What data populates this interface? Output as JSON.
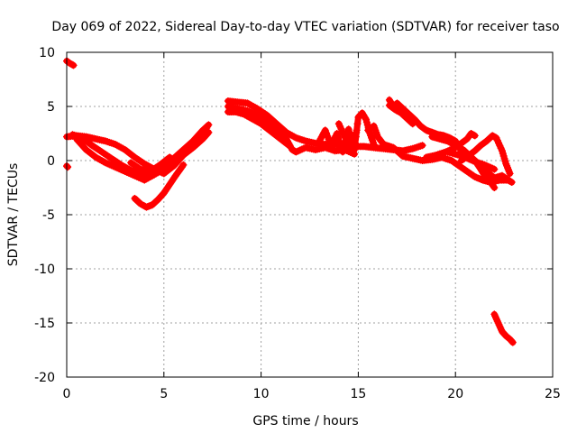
{
  "chart_data": {
    "type": "scatter",
    "title": "Day 069 of 2022, Sidereal Day-to-day VTEC variation (SDTVAR) for receiver taso",
    "xlabel": "GPS time / hours",
    "ylabel": "SDTVAR / TECUs",
    "xlim": [
      0,
      25
    ],
    "ylim": [
      -20,
      10
    ],
    "xticks": [
      0,
      5,
      10,
      15,
      20,
      25
    ],
    "yticks": [
      -20,
      -15,
      -10,
      -5,
      0,
      5,
      10
    ],
    "grid": true,
    "marker": "+",
    "series_color": "#ff0000",
    "segments": [
      [
        [
          0.0,
          9.2
        ],
        [
          0.15,
          9.0
        ],
        [
          0.35,
          8.8
        ]
      ],
      [
        [
          0.0,
          -0.5
        ],
        [
          0.05,
          -0.6
        ]
      ],
      [
        [
          0.0,
          2.2
        ],
        [
          0.5,
          2.3
        ],
        [
          1.0,
          2.2
        ],
        [
          1.5,
          2.0
        ],
        [
          2.0,
          1.8
        ],
        [
          2.5,
          1.5
        ],
        [
          3.0,
          1.0
        ],
        [
          3.5,
          0.3
        ],
        [
          4.0,
          -0.3
        ],
        [
          4.5,
          -0.8
        ],
        [
          5.0,
          -1.2
        ],
        [
          5.5,
          -0.5
        ],
        [
          6.0,
          0.5
        ],
        [
          6.5,
          1.2
        ],
        [
          7.0,
          2.0
        ],
        [
          7.3,
          2.6
        ]
      ],
      [
        [
          0.3,
          2.4
        ],
        [
          0.8,
          2.1
        ],
        [
          1.3,
          1.4
        ],
        [
          1.8,
          0.8
        ],
        [
          2.3,
          0.2
        ],
        [
          2.8,
          -0.4
        ],
        [
          3.3,
          -0.9
        ],
        [
          3.8,
          -1.3
        ],
        [
          4.3,
          -1.5
        ],
        [
          4.8,
          -1.0
        ],
        [
          5.3,
          -0.2
        ],
        [
          5.8,
          0.6
        ],
        [
          6.3,
          1.4
        ],
        [
          6.8,
          2.2
        ],
        [
          7.2,
          3.0
        ]
      ],
      [
        [
          0.5,
          2.0
        ],
        [
          1.0,
          1.0
        ],
        [
          1.5,
          0.3
        ],
        [
          2.0,
          -0.2
        ],
        [
          2.5,
          -0.6
        ],
        [
          3.0,
          -1.0
        ],
        [
          3.5,
          -1.4
        ],
        [
          4.0,
          -1.8
        ],
        [
          4.5,
          -1.3
        ],
        [
          5.0,
          -0.6
        ],
        [
          5.5,
          0.2
        ],
        [
          6.0,
          1.0
        ],
        [
          6.5,
          1.8
        ],
        [
          7.0,
          2.8
        ],
        [
          7.3,
          3.3
        ]
      ],
      [
        [
          3.5,
          -3.5
        ],
        [
          3.8,
          -4.0
        ],
        [
          4.1,
          -4.3
        ],
        [
          4.4,
          -4.1
        ],
        [
          4.7,
          -3.6
        ],
        [
          5.0,
          -3.0
        ],
        [
          5.3,
          -2.2
        ],
        [
          5.6,
          -1.4
        ],
        [
          6.0,
          -0.4
        ]
      ],
      [
        [
          3.3,
          -0.2
        ],
        [
          3.8,
          -0.8
        ],
        [
          4.3,
          -1.0
        ],
        [
          4.8,
          -0.4
        ],
        [
          5.3,
          0.3
        ]
      ],
      [
        [
          8.3,
          5.5
        ],
        [
          8.8,
          5.4
        ],
        [
          9.3,
          5.3
        ],
        [
          9.8,
          4.8
        ],
        [
          10.3,
          4.2
        ],
        [
          10.8,
          3.4
        ],
        [
          11.3,
          2.6
        ],
        [
          11.8,
          2.1
        ],
        [
          12.3,
          1.8
        ],
        [
          12.8,
          1.6
        ],
        [
          13.3,
          1.5
        ],
        [
          13.8,
          1.5
        ],
        [
          14.3,
          1.4
        ],
        [
          14.8,
          1.3
        ],
        [
          15.3,
          1.3
        ],
        [
          15.8,
          1.2
        ],
        [
          16.3,
          1.1
        ],
        [
          16.8,
          1.0
        ],
        [
          17.3,
          0.9
        ],
        [
          17.8,
          1.1
        ],
        [
          18.3,
          1.4
        ]
      ],
      [
        [
          8.3,
          5.0
        ],
        [
          8.8,
          4.8
        ],
        [
          9.3,
          4.6
        ],
        [
          9.8,
          4.2
        ],
        [
          10.3,
          3.6
        ],
        [
          10.8,
          2.8
        ],
        [
          11.3,
          2.0
        ],
        [
          11.6,
          1.0
        ],
        [
          11.8,
          0.8
        ],
        [
          12.3,
          1.2
        ],
        [
          12.8,
          1.0
        ],
        [
          13.3,
          1.2
        ],
        [
          13.8,
          0.9
        ],
        [
          14.3,
          1.0
        ],
        [
          14.8,
          0.6
        ]
      ],
      [
        [
          8.3,
          4.5
        ],
        [
          8.7,
          4.5
        ],
        [
          9.1,
          4.3
        ],
        [
          9.5,
          3.9
        ],
        [
          10.0,
          3.4
        ],
        [
          10.5,
          2.7
        ],
        [
          11.0,
          2.0
        ],
        [
          11.5,
          1.3
        ]
      ],
      [
        [
          13.0,
          1.8
        ],
        [
          13.3,
          2.8
        ],
        [
          13.6,
          1.4
        ],
        [
          13.9,
          2.5
        ],
        [
          14.2,
          0.8
        ],
        [
          14.5,
          2.9
        ],
        [
          14.8,
          1.0
        ],
        [
          15.0,
          4.0
        ],
        [
          15.2,
          4.4
        ],
        [
          15.4,
          3.8
        ],
        [
          15.6,
          2.5
        ],
        [
          15.8,
          1.5
        ]
      ],
      [
        [
          14.0,
          3.4
        ],
        [
          14.3,
          2.2
        ],
        [
          14.6,
          1.8
        ],
        [
          14.9,
          2.6
        ]
      ],
      [
        [
          15.5,
          2.8
        ],
        [
          15.8,
          3.2
        ],
        [
          16.0,
          2.2
        ],
        [
          16.3,
          1.5
        ],
        [
          16.8,
          1.2
        ],
        [
          17.3,
          0.4
        ],
        [
          17.8,
          0.2
        ],
        [
          18.3,
          0.0
        ],
        [
          18.8,
          0.1
        ],
        [
          19.3,
          0.3
        ],
        [
          19.8,
          0.0
        ],
        [
          20.2,
          -0.5
        ],
        [
          20.6,
          -1.0
        ],
        [
          21.0,
          -1.5
        ],
        [
          21.4,
          -1.8
        ],
        [
          21.8,
          -2.0
        ],
        [
          22.3,
          -1.8
        ],
        [
          22.7,
          -1.8
        ],
        [
          22.9,
          -2.0
        ]
      ],
      [
        [
          16.6,
          5.6
        ],
        [
          16.8,
          5.0
        ],
        [
          17.0,
          5.3
        ],
        [
          17.3,
          4.8
        ],
        [
          17.6,
          4.3
        ],
        [
          17.9,
          3.8
        ],
        [
          18.2,
          3.2
        ],
        [
          18.5,
          2.8
        ],
        [
          18.8,
          2.6
        ],
        [
          19.1,
          2.4
        ],
        [
          19.4,
          2.3
        ],
        [
          19.7,
          2.1
        ],
        [
          20.0,
          1.8
        ],
        [
          20.2,
          1.2
        ],
        [
          20.4,
          0.6
        ],
        [
          20.7,
          0.3
        ],
        [
          21.0,
          0.0
        ],
        [
          21.3,
          -0.5
        ],
        [
          21.6,
          -1.0
        ],
        [
          22.0,
          -1.6
        ],
        [
          22.4,
          -1.4
        ],
        [
          22.8,
          -1.9
        ]
      ],
      [
        [
          16.6,
          5.1
        ],
        [
          16.9,
          4.7
        ],
        [
          17.2,
          4.4
        ],
        [
          17.5,
          3.9
        ],
        [
          17.8,
          3.4
        ]
      ],
      [
        [
          18.5,
          0.3
        ],
        [
          19.0,
          0.5
        ],
        [
          19.5,
          0.8
        ],
        [
          20.0,
          1.2
        ],
        [
          20.3,
          1.6
        ],
        [
          20.6,
          2.0
        ],
        [
          20.8,
          2.5
        ],
        [
          21.0,
          2.3
        ]
      ],
      [
        [
          18.8,
          2.2
        ],
        [
          19.2,
          2.0
        ],
        [
          19.6,
          1.8
        ],
        [
          20.0,
          1.4
        ],
        [
          20.4,
          1.0
        ],
        [
          20.7,
          0.5
        ],
        [
          21.0,
          0.0
        ],
        [
          21.3,
          -0.8
        ],
        [
          21.5,
          -1.4
        ],
        [
          21.8,
          -2.0
        ],
        [
          22.0,
          -2.5
        ]
      ],
      [
        [
          20.3,
          0.0
        ],
        [
          20.7,
          0.5
        ],
        [
          21.0,
          0.9
        ],
        [
          21.3,
          1.4
        ],
        [
          21.6,
          1.8
        ],
        [
          21.9,
          2.3
        ],
        [
          22.1,
          2.1
        ],
        [
          22.4,
          0.9
        ],
        [
          22.6,
          -0.3
        ],
        [
          22.8,
          -1.2
        ]
      ],
      [
        [
          19.6,
          0.8
        ],
        [
          20.0,
          0.6
        ],
        [
          20.5,
          0.3
        ],
        [
          21.0,
          -0.1
        ],
        [
          21.5,
          -0.4
        ],
        [
          22.0,
          -0.8
        ]
      ],
      [
        [
          22.0,
          -14.2
        ],
        [
          22.2,
          -15.0
        ],
        [
          22.4,
          -15.8
        ],
        [
          22.6,
          -16.2
        ],
        [
          22.8,
          -16.5
        ],
        [
          22.95,
          -16.8
        ]
      ]
    ]
  }
}
